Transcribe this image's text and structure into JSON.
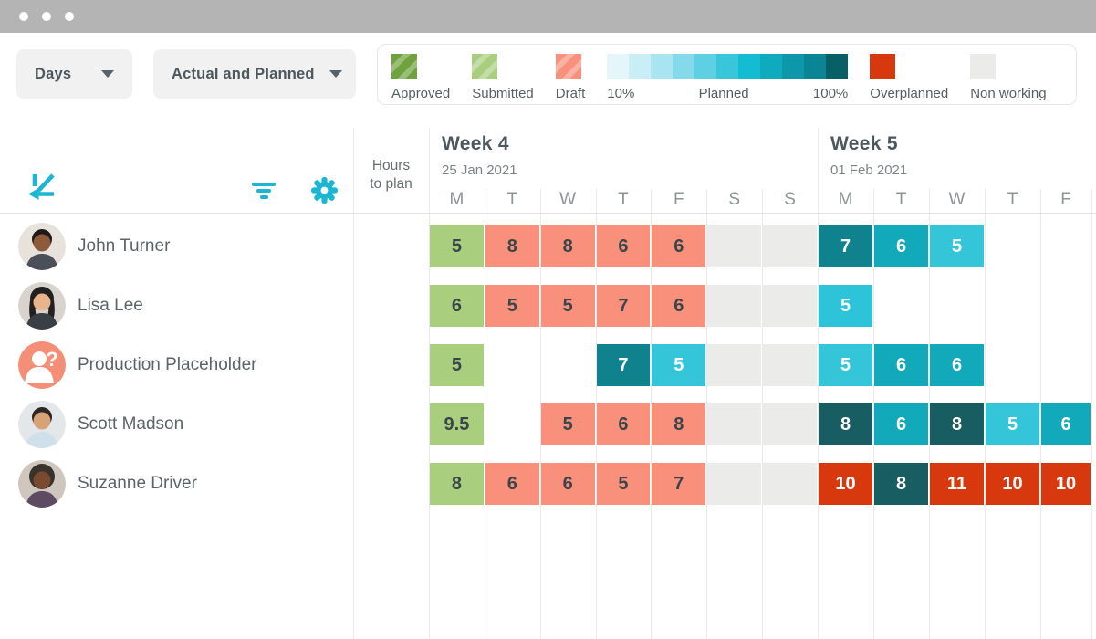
{
  "colors": {
    "accent_teal": "#1ab6d3",
    "submitted": "#a9cf7e",
    "draft": "#f8907b",
    "approved": "#6fa23d",
    "non_working": "#ebebe9",
    "overplanned": "#d8380d",
    "cell_dark_text": "#39454a",
    "planned_value_shades": {
      "5": "#35c5d9",
      "6": "#12a9ba",
      "7": "#0f828e",
      "8": "#185d61"
    }
  },
  "toolbar": {
    "timescale": {
      "value": "Days",
      "icon": "chevron-down-icon"
    },
    "view_mode": {
      "value": "Actual and Planned",
      "icon": "chevron-down-icon"
    }
  },
  "legend": {
    "approved": {
      "label": "Approved",
      "color": "#6fa23d",
      "striped": true
    },
    "submitted": {
      "label": "Submitted",
      "color": "#a9cf7e",
      "striped": true
    },
    "draft": {
      "label": "Draft",
      "color": "#f8907b",
      "striped": true
    },
    "planned": {
      "label": "Planned",
      "start_label": "10%",
      "end_label": "100%",
      "colors": [
        "#e4f6fa",
        "#c9eef5",
        "#a9e5f0",
        "#84daea",
        "#5ed0e2",
        "#38c6da",
        "#14bcd3",
        "#10aabf",
        "#0d97ab",
        "#0b8494",
        "#095f66"
      ]
    },
    "overplanned": {
      "label": "Overplanned",
      "color": "#d8380d"
    },
    "non_working": {
      "label": "Non working",
      "color": "#ebebe9"
    }
  },
  "sidebar": {
    "logo": "kelloo-logo",
    "people": [
      {
        "name": "John Turner",
        "avatar": "photo-john"
      },
      {
        "name": "Lisa Lee",
        "avatar": "photo-lisa"
      },
      {
        "name": "Production Placeholder",
        "avatar": "placeholder-question"
      },
      {
        "name": "Scott Madson",
        "avatar": "photo-scott"
      },
      {
        "name": "Suzanne Driver",
        "avatar": "photo-suzanne"
      }
    ]
  },
  "grid": {
    "hours_header_line1": "Hours",
    "hours_header_line2": "to plan",
    "weeks": [
      {
        "title": "Week 4",
        "date": "25 Jan 2021",
        "days": [
          "M",
          "T",
          "W",
          "T",
          "F",
          "S",
          "S"
        ]
      },
      {
        "title": "Week 5",
        "date": "01 Feb 2021",
        "days": [
          "M",
          "T",
          "W",
          "T",
          "F"
        ]
      }
    ],
    "rows": [
      {
        "person": "John Turner",
        "cells": [
          {
            "col": 0,
            "value": "5",
            "status": "submitted"
          },
          {
            "col": 1,
            "value": "8",
            "status": "draft"
          },
          {
            "col": 2,
            "value": "8",
            "status": "draft"
          },
          {
            "col": 3,
            "value": "6",
            "status": "draft"
          },
          {
            "col": 4,
            "value": "6",
            "status": "draft"
          },
          {
            "col": 5,
            "status": "off"
          },
          {
            "col": 6,
            "status": "off"
          },
          {
            "col": 7,
            "value": "7",
            "status": "planned",
            "color": "#0f828e"
          },
          {
            "col": 8,
            "value": "6",
            "status": "planned",
            "color": "#12a9ba"
          },
          {
            "col": 9,
            "value": "5",
            "status": "planned",
            "color": "#35c5d9"
          }
        ]
      },
      {
        "person": "Lisa Lee",
        "cells": [
          {
            "col": 0,
            "value": "6",
            "status": "submitted"
          },
          {
            "col": 1,
            "value": "5",
            "status": "draft"
          },
          {
            "col": 2,
            "value": "5",
            "status": "draft"
          },
          {
            "col": 3,
            "value": "7",
            "status": "draft"
          },
          {
            "col": 4,
            "value": "6",
            "status": "draft"
          },
          {
            "col": 5,
            "status": "off"
          },
          {
            "col": 6,
            "status": "off"
          },
          {
            "col": 7,
            "value": "5",
            "status": "planned",
            "color": "#2dc3d8"
          }
        ]
      },
      {
        "person": "Production Placeholder",
        "cells": [
          {
            "col": 0,
            "value": "5",
            "status": "submitted"
          },
          {
            "col": 3,
            "value": "7",
            "status": "planned",
            "color": "#0f828e"
          },
          {
            "col": 4,
            "value": "5",
            "status": "planned",
            "color": "#35c5d9"
          },
          {
            "col": 5,
            "status": "off"
          },
          {
            "col": 6,
            "status": "off"
          },
          {
            "col": 7,
            "value": "5",
            "status": "planned",
            "color": "#35c5d9"
          },
          {
            "col": 8,
            "value": "6",
            "status": "planned",
            "color": "#12a9ba"
          },
          {
            "col": 9,
            "value": "6",
            "status": "planned",
            "color": "#12a9ba"
          }
        ]
      },
      {
        "person": "Scott Madson",
        "cells": [
          {
            "col": 0,
            "value": "9.5",
            "status": "submitted"
          },
          {
            "col": 2,
            "value": "5",
            "status": "draft"
          },
          {
            "col": 3,
            "value": "6",
            "status": "draft"
          },
          {
            "col": 4,
            "value": "8",
            "status": "draft"
          },
          {
            "col": 5,
            "status": "off"
          },
          {
            "col": 6,
            "status": "off"
          },
          {
            "col": 7,
            "value": "8",
            "status": "planned",
            "color": "#185d61"
          },
          {
            "col": 8,
            "value": "6",
            "status": "planned",
            "color": "#12a9ba"
          },
          {
            "col": 9,
            "value": "8",
            "status": "planned",
            "color": "#185d61"
          },
          {
            "col": 10,
            "value": "5",
            "status": "planned",
            "color": "#35c5d9"
          },
          {
            "col": 11,
            "value": "6",
            "status": "planned",
            "color": "#12a9ba"
          }
        ]
      },
      {
        "person": "Suzanne Driver",
        "cells": [
          {
            "col": 0,
            "value": "8",
            "status": "submitted"
          },
          {
            "col": 1,
            "value": "6",
            "status": "draft"
          },
          {
            "col": 2,
            "value": "6",
            "status": "draft"
          },
          {
            "col": 3,
            "value": "5",
            "status": "draft"
          },
          {
            "col": 4,
            "value": "7",
            "status": "draft"
          },
          {
            "col": 5,
            "status": "off"
          },
          {
            "col": 6,
            "status": "off"
          },
          {
            "col": 7,
            "value": "10",
            "status": "over"
          },
          {
            "col": 8,
            "value": "8",
            "status": "planned",
            "color": "#185d61"
          },
          {
            "col": 9,
            "value": "11",
            "status": "over"
          },
          {
            "col": 10,
            "value": "10",
            "status": "over"
          },
          {
            "col": 11,
            "value": "10",
            "status": "over"
          }
        ]
      }
    ]
  }
}
